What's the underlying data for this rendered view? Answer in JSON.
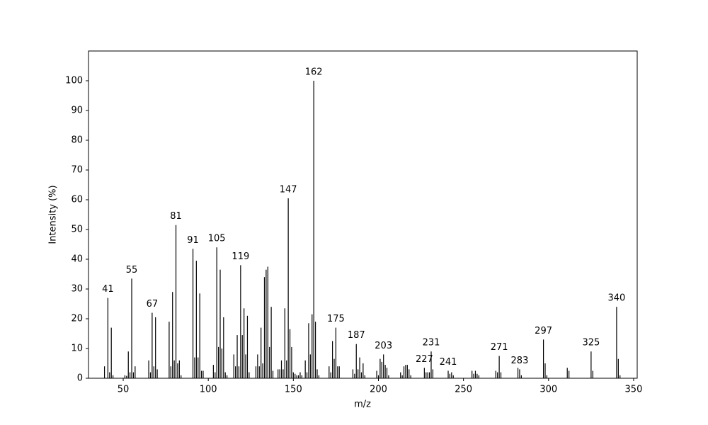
{
  "chart_data": {
    "type": "bar",
    "xlabel": "m/z",
    "ylabel": "Intensity (%)",
    "x": [
      39,
      41,
      42,
      43,
      44,
      51,
      52,
      53,
      54,
      55,
      56,
      57,
      65,
      66,
      67,
      68,
      69,
      70,
      77,
      78,
      79,
      80,
      81,
      82,
      83,
      84,
      91,
      92,
      93,
      94,
      95,
      96,
      97,
      103,
      104,
      105,
      106,
      107,
      108,
      109,
      110,
      111,
      115,
      116,
      117,
      118,
      119,
      120,
      121,
      122,
      123,
      124,
      128,
      129,
      130,
      131,
      132,
      133,
      134,
      135,
      136,
      137,
      138,
      141,
      142,
      143,
      144,
      145,
      146,
      147,
      148,
      149,
      150,
      151,
      152,
      153,
      154,
      155,
      157,
      158,
      159,
      160,
      161,
      162,
      163,
      164,
      165,
      171,
      172,
      173,
      174,
      175,
      176,
      177,
      185,
      186,
      187,
      188,
      189,
      190,
      191,
      192,
      199,
      200,
      201,
      202,
      203,
      204,
      205,
      206,
      213,
      214,
      215,
      216,
      217,
      218,
      219,
      227,
      228,
      229,
      230,
      231,
      232,
      241,
      242,
      243,
      244,
      255,
      256,
      257,
      258,
      259,
      269,
      270,
      271,
      272,
      282,
      283,
      284,
      297,
      298,
      299,
      311,
      312,
      325,
      326,
      340,
      341,
      342
    ],
    "values": [
      4,
      27,
      2,
      17,
      1,
      1,
      0.8,
      9,
      2,
      33.5,
      2,
      4,
      6,
      2,
      22,
      4,
      20.5,
      3,
      19,
      4,
      29,
      6,
      51.5,
      5,
      6,
      1,
      43.5,
      7,
      39.5,
      7,
      28.5,
      2.5,
      2.5,
      4.5,
      2,
      44,
      10.5,
      36.5,
      10,
      20.5,
      2,
      1,
      8,
      4,
      14.5,
      4,
      38,
      14.5,
      23.5,
      8,
      21,
      2,
      4,
      8,
      4,
      17,
      5,
      34,
      36.5,
      37.5,
      10.5,
      24,
      2.5,
      3,
      3,
      6,
      3,
      23.5,
      6,
      60.5,
      16.5,
      10.5,
      2,
      1.5,
      1,
      1,
      2,
      1,
      6,
      2,
      18.5,
      8,
      21.5,
      100,
      19,
      3,
      1,
      4,
      2,
      12.5,
      6.5,
      17,
      4,
      4,
      3,
      1.5,
      11.5,
      3,
      7,
      2,
      5,
      1,
      2.5,
      1,
      6.5,
      5.5,
      8,
      4.5,
      3.5,
      1,
      2,
      1,
      4,
      4.5,
      4.5,
      3,
      1,
      3.5,
      2,
      2,
      2,
      9,
      3,
      2.5,
      1.5,
      2,
      1,
      2.5,
      1.5,
      2.5,
      1.5,
      1,
      2.5,
      2,
      7.5,
      2,
      3.5,
      3,
      1,
      13,
      5,
      1,
      3.5,
      2.5,
      9,
      2.5,
      24,
      6.5,
      1
    ],
    "color": "#000000",
    "peak_labels": [
      41,
      55,
      67,
      81,
      91,
      105,
      119,
      147,
      162,
      175,
      187,
      203,
      227,
      231,
      241,
      271,
      283,
      297,
      325,
      340
    ],
    "xlim": [
      29.6,
      352.1
    ],
    "xticks": [
      50,
      100,
      150,
      200,
      250,
      300,
      350
    ],
    "ylim": [
      0,
      110
    ],
    "yticks": [
      0,
      10,
      20,
      30,
      40,
      50,
      60,
      70,
      80,
      90,
      100
    ]
  }
}
